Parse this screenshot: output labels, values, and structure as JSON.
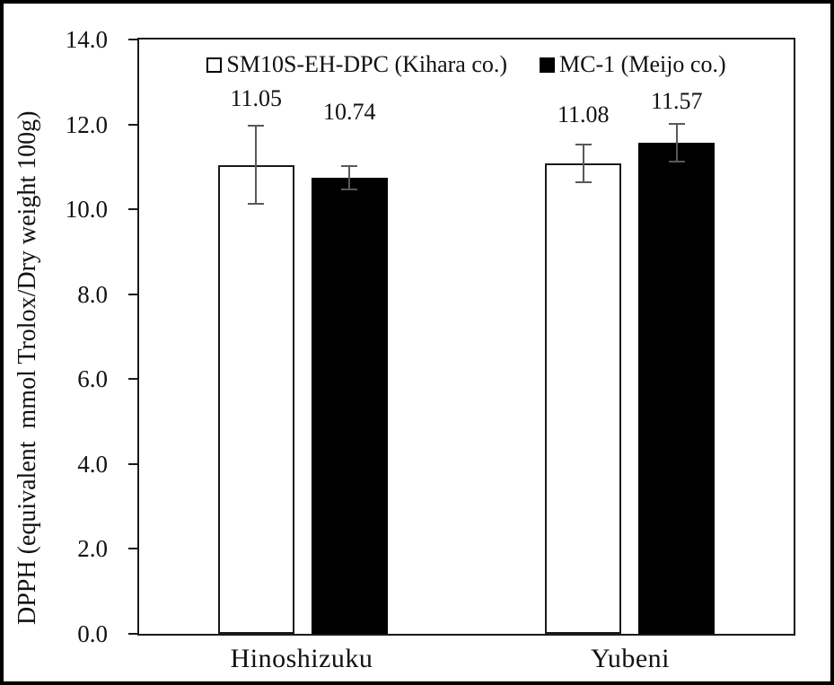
{
  "chart_data": {
    "type": "bar",
    "title": "",
    "categories": [
      "Hinoshizuku",
      "Yubeni"
    ],
    "series": [
      {
        "name": "SM10S-EH-DPC (Kihara co.)",
        "fill": "#ffffff",
        "values": [
          11.05,
          11.08
        ],
        "errors": [
          0.93,
          0.45
        ],
        "labels": [
          "11.05",
          "11.08"
        ]
      },
      {
        "name": "MC-1 (Meijo co.)",
        "fill": "#000000",
        "values": [
          10.74,
          11.57
        ],
        "errors": [
          0.27,
          0.45
        ],
        "labels": [
          "10.74",
          "11.57"
        ]
      }
    ],
    "ylabel": "DPPH (equivalent  mmol Trolox/Dry weight 100g)",
    "xlabel": "",
    "ylim": [
      0,
      14
    ],
    "ytick_step": 2,
    "yticks": [
      "0.0",
      "2.0",
      "4.0",
      "6.0",
      "8.0",
      "10.0",
      "12.0",
      "14.0"
    ],
    "grid": false,
    "legend_position": "top-inside",
    "label_y_hint": [
      [
        12.58,
        12.2
      ],
      [
        12.27,
        12.52
      ]
    ],
    "colors": {
      "bar_outline": "#1a1a1a",
      "error_bar": "#595959",
      "axis": "#1a1a1a",
      "text": "#111111",
      "background": "#ffffff"
    }
  }
}
